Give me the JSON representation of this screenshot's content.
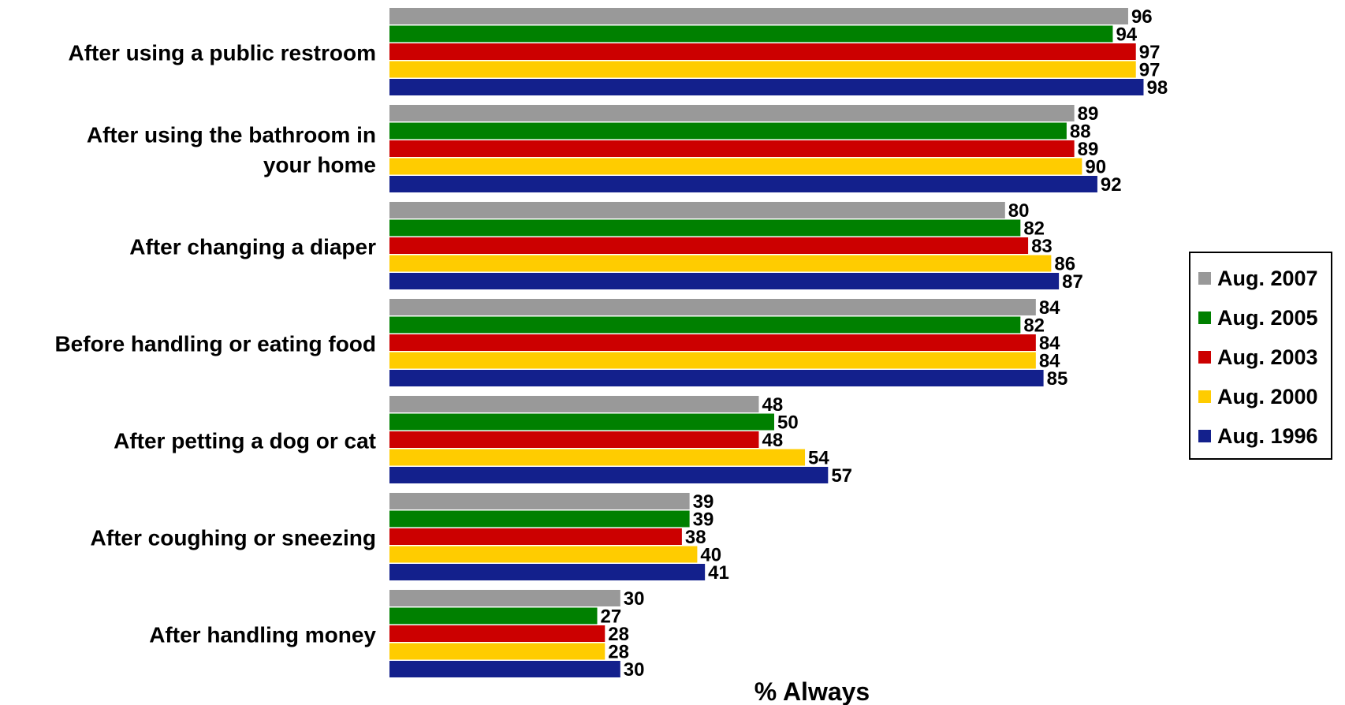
{
  "chart_data": {
    "type": "bar",
    "orientation": "horizontal",
    "categories": [
      [
        "After using a public restroom"
      ],
      [
        "After using the bathroom in",
        "your home"
      ],
      [
        "After changing a diaper"
      ],
      [
        "Before handling or eating food"
      ],
      [
        "After petting a dog or cat"
      ],
      [
        "After coughing or sneezing"
      ],
      [
        "After handling money"
      ]
    ],
    "series": [
      {
        "name": "Aug. 2007",
        "color": "#999999",
        "values": [
          96,
          89,
          80,
          84,
          48,
          39,
          30
        ]
      },
      {
        "name": "Aug. 2005",
        "color": "#008000",
        "values": [
          94,
          88,
          82,
          82,
          50,
          39,
          27
        ]
      },
      {
        "name": "Aug. 2003",
        "color": "#cc0000",
        "values": [
          97,
          89,
          83,
          84,
          48,
          38,
          28
        ]
      },
      {
        "name": "Aug. 2000",
        "color": "#ffcc00",
        "values": [
          97,
          90,
          86,
          84,
          54,
          40,
          28
        ]
      },
      {
        "name": "Aug. 1996",
        "color": "#13208c",
        "values": [
          98,
          92,
          87,
          85,
          57,
          41,
          30
        ]
      }
    ],
    "xlabel": "% Always",
    "xlim": [
      0,
      100
    ],
    "grid": false,
    "legend_position": "right"
  }
}
